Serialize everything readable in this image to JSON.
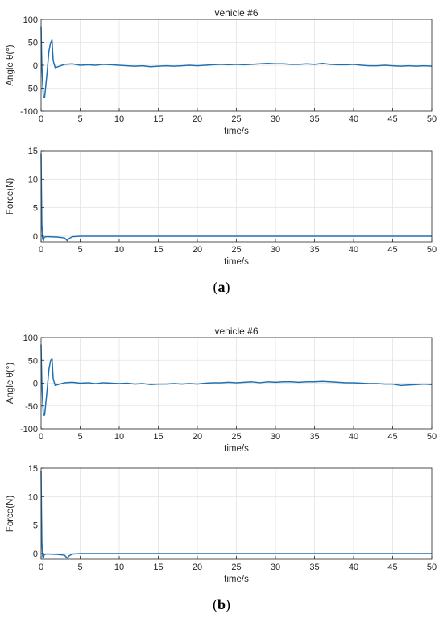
{
  "chart_data": [
    {
      "type": "line",
      "panel_group": "a",
      "title": "vehicle #6",
      "xlabel": "time/s",
      "ylabel": "Angle  θ(°)",
      "xlim": [
        0,
        50
      ],
      "ylim": [
        -100,
        100
      ],
      "xticks": [
        0,
        5,
        10,
        15,
        20,
        25,
        30,
        35,
        40,
        45,
        50
      ],
      "yticks": [
        -100,
        -50,
        0,
        50,
        100
      ],
      "grid": true,
      "color": "#1f70b3",
      "series": [
        {
          "x": [
            0,
            0.05,
            0.1,
            0.2,
            0.3,
            0.45,
            0.6,
            0.8,
            1.0,
            1.2,
            1.4,
            1.55,
            1.8,
            2.2,
            3,
            4,
            5,
            6,
            7,
            8,
            9,
            10,
            11,
            12,
            13,
            14,
            15,
            16,
            17,
            18,
            19,
            20,
            21,
            22,
            23,
            24,
            25,
            26,
            27,
            28,
            29,
            30,
            31,
            32,
            33,
            34,
            35,
            36,
            37,
            38,
            39,
            40,
            41,
            42,
            43,
            44,
            45,
            46,
            47,
            48,
            49,
            50
          ],
          "y": [
            85,
            40,
            0,
            -40,
            -70,
            -70,
            -45,
            -10,
            30,
            48,
            55,
            10,
            -5,
            -3,
            2,
            3,
            0,
            1,
            0,
            2,
            1,
            0,
            -1,
            -2,
            -1,
            -3,
            -2,
            -1,
            -2,
            -1,
            0,
            -1,
            0,
            1,
            2,
            1,
            2,
            1,
            2,
            3,
            4,
            3,
            3,
            2,
            2,
            3,
            2,
            4,
            2,
            1,
            1,
            2,
            0,
            -1,
            -1,
            0,
            -1,
            -2,
            -1,
            -2,
            -1,
            -2
          ]
        }
      ]
    },
    {
      "type": "line",
      "panel_group": "a",
      "title": "",
      "xlabel": "time/s",
      "ylabel": "Force(N)",
      "xlim": [
        0,
        50
      ],
      "ylim": [
        -1,
        15
      ],
      "xticks": [
        0,
        5,
        10,
        15,
        20,
        25,
        30,
        35,
        40,
        45,
        50
      ],
      "yticks": [
        0,
        5,
        10,
        15
      ],
      "grid": true,
      "color": "#1f70b3",
      "series": [
        {
          "x": [
            0,
            0.05,
            0.1,
            0.2,
            0.3,
            0.4,
            0.6,
            1,
            2,
            3,
            3.2,
            3.35,
            3.6,
            4,
            5,
            10,
            15,
            20,
            25,
            30,
            35,
            40,
            45,
            50
          ],
          "y": [
            14.5,
            8,
            2,
            -0.5,
            -0.8,
            -0.2,
            -0.1,
            -0.1,
            -0.15,
            -0.3,
            -0.6,
            -0.8,
            -0.4,
            -0.1,
            0,
            0,
            0,
            0,
            0,
            0,
            0,
            0,
            0,
            0
          ]
        }
      ]
    },
    {
      "type": "line",
      "panel_group": "b",
      "title": "vehicle #6",
      "xlabel": "time/s",
      "ylabel": "Angle  θ(°)",
      "xlim": [
        0,
        50
      ],
      "ylim": [
        -100,
        100
      ],
      "xticks": [
        0,
        5,
        10,
        15,
        20,
        25,
        30,
        35,
        40,
        45,
        50
      ],
      "yticks": [
        -100,
        -50,
        0,
        50,
        100
      ],
      "grid": true,
      "color": "#1f70b3",
      "series": [
        {
          "x": [
            0,
            0.05,
            0.1,
            0.2,
            0.3,
            0.45,
            0.6,
            0.8,
            1.0,
            1.2,
            1.4,
            1.55,
            1.8,
            2.2,
            3,
            4,
            5,
            6,
            7,
            8,
            9,
            10,
            11,
            12,
            13,
            14,
            15,
            16,
            17,
            18,
            19,
            20,
            21,
            22,
            23,
            24,
            25,
            26,
            27,
            28,
            29,
            30,
            31,
            32,
            33,
            34,
            35,
            36,
            37,
            38,
            39,
            40,
            41,
            42,
            43,
            44,
            45,
            46,
            47,
            48,
            49,
            50
          ],
          "y": [
            85,
            40,
            0,
            -40,
            -70,
            -70,
            -45,
            -10,
            30,
            48,
            55,
            10,
            -5,
            -3,
            1,
            2,
            0,
            1,
            -1,
            1,
            0,
            -1,
            0,
            -2,
            -1,
            -3,
            -2,
            -2,
            -1,
            -2,
            -1,
            -2,
            0,
            1,
            1,
            2,
            1,
            2,
            3,
            1,
            3,
            2,
            3,
            3,
            2,
            3,
            3,
            4,
            3,
            2,
            1,
            1,
            0,
            -1,
            -1,
            -2,
            -2,
            -5,
            -4,
            -3,
            -2,
            -3
          ]
        }
      ]
    },
    {
      "type": "line",
      "panel_group": "b",
      "title": "",
      "xlabel": "time/s",
      "ylabel": "Force(N)",
      "xlim": [
        0,
        50
      ],
      "ylim": [
        -1,
        15
      ],
      "xticks": [
        0,
        5,
        10,
        15,
        20,
        25,
        30,
        35,
        40,
        45,
        50
      ],
      "yticks": [
        0,
        5,
        10,
        15
      ],
      "grid": true,
      "color": "#1f70b3",
      "series": [
        {
          "x": [
            0,
            0.05,
            0.1,
            0.2,
            0.3,
            0.4,
            0.6,
            1,
            2,
            3,
            3.2,
            3.35,
            3.6,
            4,
            5,
            10,
            15,
            20,
            25,
            30,
            35,
            40,
            45,
            50
          ],
          "y": [
            14.5,
            8,
            2,
            -0.5,
            -0.8,
            -0.2,
            -0.1,
            -0.1,
            -0.15,
            -0.3,
            -0.6,
            -0.8,
            -0.4,
            -0.1,
            0,
            0,
            0,
            0,
            0,
            0,
            0,
            0,
            0,
            0
          ]
        }
      ]
    }
  ],
  "captions": {
    "a": "a",
    "b": "b"
  }
}
